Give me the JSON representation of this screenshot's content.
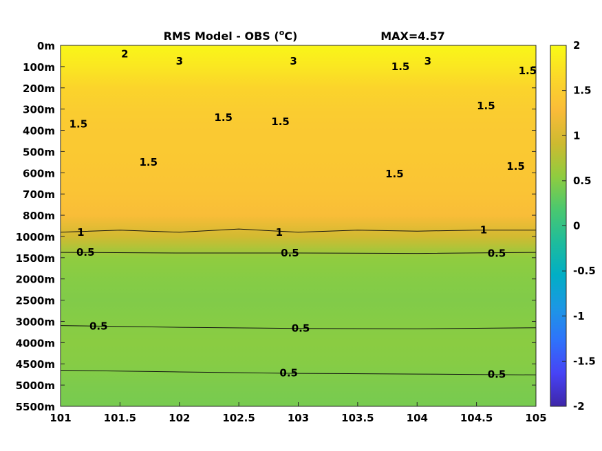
{
  "chart_data": {
    "type": "heatmap",
    "title": "RMS Model - OBS (",
    "title_unit_super": "o",
    "title_unit_tail": "C)",
    "max_label": "MAX=4.57",
    "x_ticks": [
      "101",
      "101.5",
      "102",
      "102.5",
      "103",
      "103.5",
      "104",
      "104.5",
      "105"
    ],
    "x_tick_values": [
      101,
      101.5,
      102,
      102.5,
      103,
      103.5,
      104,
      104.5,
      105
    ],
    "xlim": [
      101,
      105
    ],
    "y_ticks": [
      "0m",
      "100m",
      "200m",
      "300m",
      "400m",
      "500m",
      "600m",
      "700m",
      "800m",
      "1000m",
      "1500m",
      "2000m",
      "2500m",
      "3000m",
      "4000m",
      "4500m",
      "5000m",
      "5500m"
    ],
    "colorbar": {
      "ticks": [
        "2",
        "1.5",
        "1",
        "0.5",
        "0",
        "-0.5",
        "-1",
        "-1.5",
        "-2"
      ],
      "range": [
        -2,
        2
      ],
      "colormap": [
        "#3e26a8",
        "#4743f5",
        "#2f72fb",
        "#1c97e4",
        "#01aec5",
        "#1ebc9c",
        "#4ac86f",
        "#8fcc3f",
        "#cdba30",
        "#f9bb39",
        "#fbd72a",
        "#f9fb15"
      ]
    },
    "depth_profile": [
      {
        "level": 0,
        "value": 1.95
      },
      {
        "level": 1,
        "value": 1.8
      },
      {
        "level": 2,
        "value": 1.6
      },
      {
        "level": 3,
        "value": 1.5
      },
      {
        "level": 4,
        "value": 1.45
      },
      {
        "level": 5,
        "value": 1.45
      },
      {
        "level": 6,
        "value": 1.42
      },
      {
        "level": 7,
        "value": 1.38
      },
      {
        "level": 8,
        "value": 1.3
      },
      {
        "level": 9,
        "value": 0.95
      },
      {
        "level": 10,
        "value": 0.55
      },
      {
        "level": 11,
        "value": 0.5
      },
      {
        "level": 12,
        "value": 0.47
      },
      {
        "level": 13,
        "value": 0.5
      },
      {
        "level": 14,
        "value": 0.52
      },
      {
        "level": 15,
        "value": 0.5
      },
      {
        "level": 16,
        "value": 0.45
      },
      {
        "level": 17,
        "value": 0.42
      }
    ],
    "contours": [
      {
        "level": "1",
        "x": [
          101,
          101.5,
          102,
          102.5,
          103,
          103.5,
          104,
          104.5,
          105
        ],
        "y": [
          8.8,
          8.7,
          8.8,
          8.65,
          8.8,
          8.7,
          8.75,
          8.7,
          8.7
        ]
      },
      {
        "level": "0.5",
        "x": [
          101,
          102,
          103,
          104,
          105
        ],
        "y": [
          9.75,
          9.78,
          9.78,
          9.8,
          9.75
        ]
      },
      {
        "level": "0.5",
        "x": [
          101,
          102,
          103,
          104,
          105
        ],
        "y": [
          13.2,
          13.28,
          13.33,
          13.35,
          13.3
        ]
      },
      {
        "level": "0.5",
        "x": [
          101,
          102,
          103,
          104,
          105
        ],
        "y": [
          15.3,
          15.38,
          15.45,
          15.48,
          15.52
        ]
      }
    ],
    "contour_labels": [
      {
        "text": "1",
        "x": 101.17,
        "y": 8.8
      },
      {
        "text": "1",
        "x": 102.84,
        "y": 8.8
      },
      {
        "text": "1",
        "x": 104.56,
        "y": 8.7
      },
      {
        "text": "0.5",
        "x": 101.21,
        "y": 9.75
      },
      {
        "text": "0.5",
        "x": 102.93,
        "y": 9.78
      },
      {
        "text": "0.5",
        "x": 104.67,
        "y": 9.8
      },
      {
        "text": "0.5",
        "x": 101.32,
        "y": 13.22
      },
      {
        "text": "0.5",
        "x": 103.02,
        "y": 13.33
      },
      {
        "text": "0.5",
        "x": 102.92,
        "y": 15.43
      },
      {
        "text": "0.5",
        "x": 104.67,
        "y": 15.5
      },
      {
        "text": "1.5",
        "x": 101.15,
        "y": 3.7
      },
      {
        "text": "1.5",
        "x": 101.74,
        "y": 5.5
      },
      {
        "text": "1.5",
        "x": 102.37,
        "y": 3.4
      },
      {
        "text": "1.5",
        "x": 102.85,
        "y": 3.6
      },
      {
        "text": "1.5",
        "x": 103.81,
        "y": 6.05
      },
      {
        "text": "1.5",
        "x": 104.58,
        "y": 2.85
      },
      {
        "text": "1.5",
        "x": 104.83,
        "y": 5.7
      },
      {
        "text": "1.5",
        "x": 103.86,
        "y": 1.0
      },
      {
        "text": "1.5",
        "x": 104.93,
        "y": 1.2
      },
      {
        "text": "2",
        "x": 101.54,
        "y": 0.4
      },
      {
        "text": "3",
        "x": 102.0,
        "y": 0.75
      },
      {
        "text": "3",
        "x": 102.96,
        "y": 0.75
      },
      {
        "text": "3",
        "x": 104.09,
        "y": 0.75
      }
    ]
  }
}
